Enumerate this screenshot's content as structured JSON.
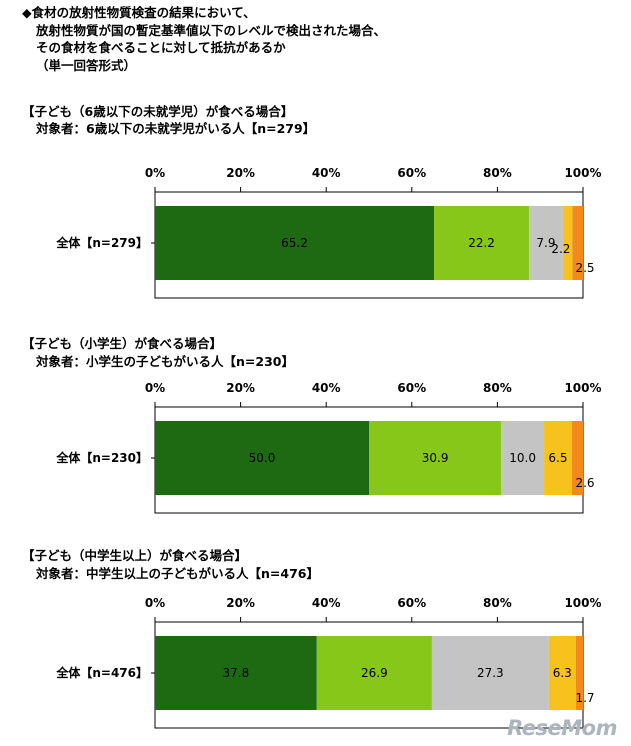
{
  "header": {
    "lines": [
      "◆食材の放射性物質検査の結果において、",
      "放射性物質が国の暫定基準値以下のレベルで検出された場合、",
      "その食材を食べることに対して抵抗があるか",
      "（単一回答形式）"
    ]
  },
  "colors": [
    "#1e6a12",
    "#86c71a",
    "#c4c4c4",
    "#f8c21c",
    "#f28a1d"
  ],
  "chart_data": [
    {
      "type": "bar",
      "orientation": "horizontal-stacked",
      "title": "【子ども（6歳以下の未就学児）が食べる場合】",
      "subtitle": "対象者：6歳以下の未就学児がいる人【n=279】",
      "categories": [
        "全体【n=279】"
      ],
      "xlim": [
        0,
        100
      ],
      "ticks": [
        "0%",
        "20%",
        "40%",
        "60%",
        "80%",
        "100%"
      ],
      "values": [
        65.2,
        22.2,
        7.9,
        2.2,
        2.5
      ],
      "labels": [
        "65.2",
        "22.2",
        "7.9",
        "2.2",
        "2.5"
      ]
    },
    {
      "type": "bar",
      "orientation": "horizontal-stacked",
      "title": "【子ども（小学生）が食べる場合】",
      "subtitle": "対象者：小学生の子どもがいる人【n=230】",
      "categories": [
        "全体【n=230】"
      ],
      "xlim": [
        0,
        100
      ],
      "ticks": [
        "0%",
        "20%",
        "40%",
        "60%",
        "80%",
        "100%"
      ],
      "values": [
        50.0,
        30.9,
        10.0,
        6.5,
        2.6
      ],
      "labels": [
        "50.0",
        "30.9",
        "10.0",
        "6.5",
        "2.6"
      ]
    },
    {
      "type": "bar",
      "orientation": "horizontal-stacked",
      "title": "【子ども（中学生以上）が食べる場合】",
      "subtitle": "対象者：中学生以上の子どもがいる人【n=476】",
      "categories": [
        "全体【n=476】"
      ],
      "xlim": [
        0,
        100
      ],
      "ticks": [
        "0%",
        "20%",
        "40%",
        "60%",
        "80%",
        "100%"
      ],
      "values": [
        37.8,
        26.9,
        27.3,
        6.3,
        1.7
      ],
      "labels": [
        "37.8",
        "26.9",
        "27.3",
        "6.3",
        "1.7"
      ]
    }
  ],
  "logo": "ReseMom"
}
